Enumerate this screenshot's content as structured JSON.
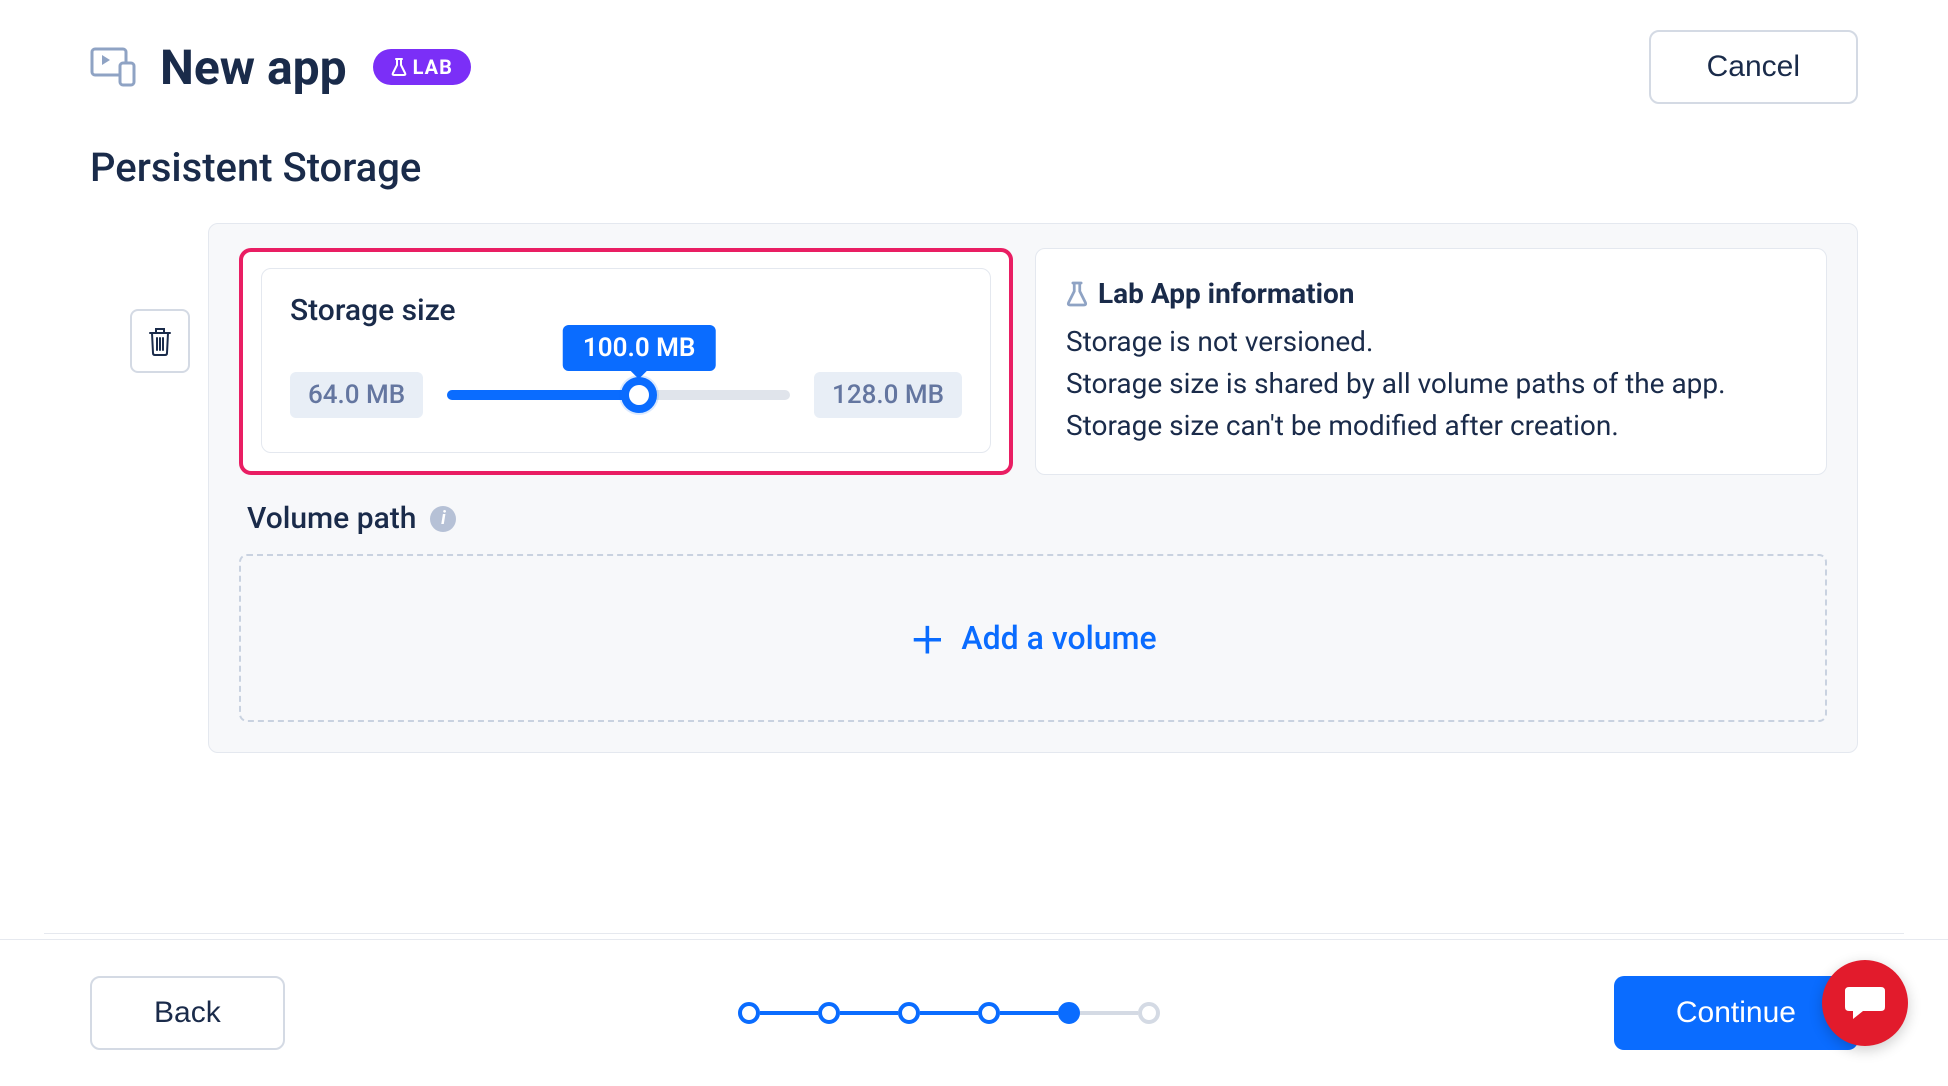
{
  "header": {
    "title": "New app",
    "lab_badge": "LAB",
    "cancel_label": "Cancel"
  },
  "section": {
    "title": "Persistent Storage"
  },
  "storage": {
    "label": "Storage size",
    "min_label": "64.0 MB",
    "max_label": "128.0 MB",
    "current_label": "100.0 MB",
    "min_value": 64.0,
    "max_value": 128.0,
    "current_value": 100.0,
    "fill_percent": 56,
    "slider_color": "#0a6cff",
    "track_color": "#e0e4eb",
    "highlight_border_color": "#e91e63"
  },
  "info": {
    "title": "Lab App information",
    "line1": "Storage is not versioned.",
    "line2": "Storage size is shared by all volume paths of the app.",
    "line3": "Storage size can't be modified after creation."
  },
  "volume": {
    "label": "Volume path",
    "add_label": "Add a volume"
  },
  "footer": {
    "back_label": "Back",
    "continue_label": "Continue",
    "stepper": {
      "total_steps": 6,
      "current_step": 5,
      "active_color": "#0a6cff",
      "inactive_color": "#d4dae4"
    }
  },
  "colors": {
    "text_primary": "#1a2b4a",
    "text_muted": "#6476a0",
    "accent": "#0a6cff",
    "lab_badge": "#7b2ff7",
    "panel_bg": "#f7f8fa",
    "border": "#e4e8ef",
    "chat_fab": "#e21b2c"
  }
}
